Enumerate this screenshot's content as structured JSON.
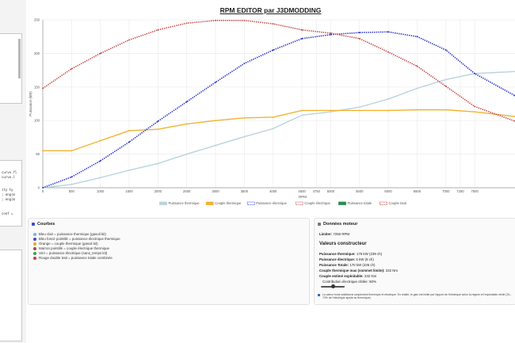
{
  "left_panel": {
    "code_lines": [
      "curve.fl",
      "curve.l",
      "",
      "",
      "ity ty",
      "; eng(m",
      "; eng(m",
      "",
      "",
      "coef ="
    ]
  },
  "chart_data": {
    "type": "line",
    "title": "RPM EDITOR par J3DMODDING",
    "xlabel": "RPM",
    "ylabel": "Puissance (kW)",
    "xlim": [
      0,
      8200
    ],
    "ylim": [
      0,
      250
    ],
    "x_ticks": [
      0,
      500,
      1000,
      1500,
      2000,
      2500,
      3000,
      3500,
      4000,
      4500,
      4750,
      5000,
      5500,
      6000,
      6500,
      7000,
      7250,
      7500
    ],
    "y_ticks": [
      0,
      50,
      100,
      150,
      200,
      250
    ],
    "grid": true,
    "legend_position": "bottom",
    "series": [
      {
        "name": "Puissance thermique",
        "color": "#b9d3dd",
        "style": "solid",
        "x": [
          0,
          500,
          1000,
          1500,
          2000,
          2500,
          3000,
          3500,
          4000,
          4500,
          5000,
          5500,
          6000,
          6500,
          7000,
          7500,
          8200
        ],
        "values": [
          0,
          5,
          15,
          26,
          36,
          50,
          63,
          76,
          88,
          108,
          113,
          120,
          132,
          148,
          161,
          170,
          173
        ]
      },
      {
        "name": "Couple thermique",
        "color": "#f2b233",
        "style": "solid",
        "x": [
          0,
          500,
          1000,
          1500,
          2000,
          2500,
          3000,
          3500,
          4000,
          4500,
          5000,
          5500,
          6000,
          6500,
          7000,
          7500,
          8200
        ],
        "values": [
          55,
          55,
          70,
          85,
          87,
          95,
          100,
          104,
          105,
          115,
          115,
          115,
          115,
          116,
          116,
          113,
          106
        ]
      },
      {
        "name": "Puissance électrique",
        "color": "#2a34c9",
        "style": "dotted",
        "x": [
          0,
          500,
          1000,
          1500,
          2000,
          2500,
          3000,
          3500,
          4000,
          4500,
          5000,
          5500,
          6000,
          6500,
          7000,
          7500,
          8200
        ],
        "values": [
          0,
          16,
          40,
          68,
          99,
          128,
          157,
          185,
          205,
          222,
          228,
          231,
          232,
          225,
          205,
          170,
          137
        ]
      },
      {
        "name": "Couple électrique",
        "color": "#c44a4a",
        "style": "dotted",
        "x": [
          0,
          500,
          1000,
          1500,
          2000,
          2500,
          3000,
          3500,
          4000,
          4500,
          5000,
          5500,
          6000,
          6500,
          7000,
          7500,
          8200
        ],
        "values": [
          148,
          177,
          200,
          220,
          235,
          245,
          249,
          249,
          244,
          235,
          230,
          222,
          202,
          181,
          151,
          121,
          99
        ]
      },
      {
        "name": "Puissance totale",
        "color": "#2e8b57",
        "style": "solid",
        "x": [],
        "values": []
      },
      {
        "name": "Couple total",
        "color": "#c62828",
        "style": "dotted",
        "x": [],
        "values": []
      }
    ]
  },
  "courbes_panel": {
    "title": "Courbes",
    "items": [
      {
        "color": "#7fb2d3",
        "text": "Bleu clair = puissance thermique (gasoil kit)"
      },
      {
        "color": "#3a4fcf",
        "text": "Bleu foncé pointillé = puissance électrique thermique"
      },
      {
        "color": "#f0a330",
        "text": "Orange = couple thermique (gasoil kit)"
      },
      {
        "color": "#a0523c",
        "text": "Marron pointillé = couple électrique thermique"
      },
      {
        "color": "#3e9b59",
        "text": "Vert = puissance électrique (sans_temps kit)"
      },
      {
        "color": "#d13c3c",
        "text": "Rouge double trait = puissance totale combinée"
      }
    ]
  },
  "moteur_panel": {
    "title": "Données moteur",
    "limiter_label": "Limiter:",
    "limiter_value": "7250 RPM",
    "constructor_title": "Valeurs constructeur",
    "rows": [
      {
        "label": "Puissance thermique:",
        "value": "176 kW (239 ch)"
      },
      {
        "label": "Puissance électrique:",
        "value": "6 kW (8 ch)"
      },
      {
        "label": "Puissance Totale:",
        "value": "170 kW (236 ch)"
      },
      {
        "label": "Couple thermique max (sommet limite):",
        "value": "232 Nm"
      },
      {
        "label": "Couple estimé exploitable:",
        "value": "232 Nm"
      }
    ],
    "slider_label": "Contribution électrique ciblée: 50%",
    "slider_value": 0.5,
    "note": "La valeur brute additionne simplement thermique et électrique. En réalité, le gain est limité par l'apport de l'électrique selon la régime et l'exploitable réelle (20–70% de l'électrique ajouté au thermique)."
  }
}
